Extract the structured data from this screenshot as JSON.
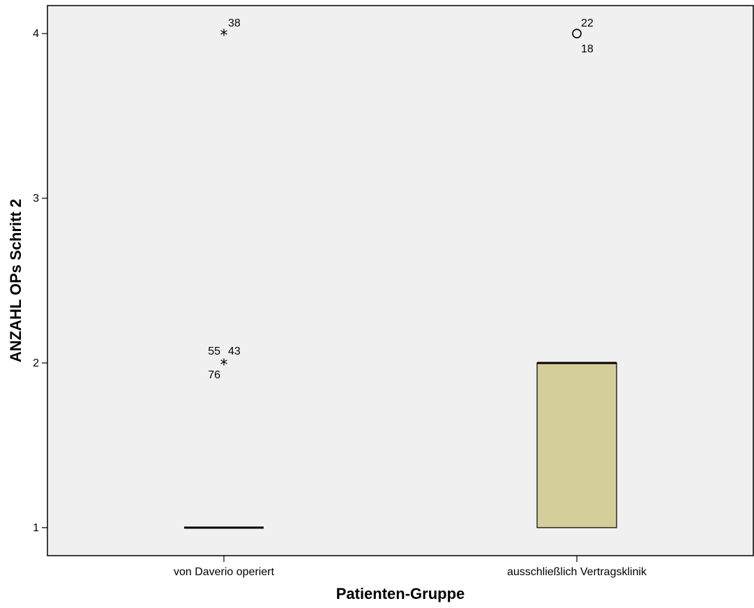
{
  "chart_data": {
    "type": "boxplot",
    "xlabel": "Patienten-Gruppe",
    "ylabel": "ANZAHL OPs  Schritt 2",
    "yticks": [
      1,
      2,
      3,
      4
    ],
    "ylim": [
      0.83,
      4.17
    ],
    "categories": [
      "von Daverio operiert",
      "ausschließlich Vertragsklinik"
    ],
    "box_fill": "#d4cf9a",
    "plot_background": "#f0f0f0",
    "boxes": [
      {
        "category": "von Daverio operiert",
        "q1": 1,
        "median": 1,
        "q3": 1,
        "whisker_low": 1,
        "whisker_high": 1,
        "outliers": [
          {
            "y": 4,
            "marker": "star",
            "labels": [
              "38"
            ]
          },
          {
            "y": 2,
            "marker": "star",
            "labels": [
              "55",
              "43",
              "76"
            ]
          }
        ]
      },
      {
        "category": "ausschließlich Vertragsklinik",
        "q1": 1,
        "median": 2,
        "q3": 2,
        "whisker_low": 1,
        "whisker_high": 2,
        "outliers": [
          {
            "y": 4,
            "marker": "circle",
            "labels": [
              "22",
              "18"
            ]
          }
        ]
      }
    ]
  }
}
